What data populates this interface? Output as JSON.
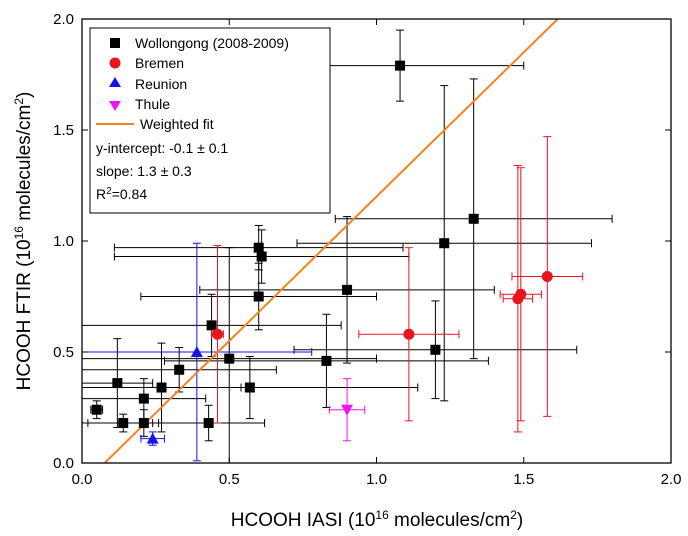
{
  "chart_data": {
    "type": "scatter",
    "xlabel": "HCOOH IASI (10^16 molecules/cm^2)",
    "ylabel": "HCOOH FTIR (10^16 molecules/cm^2)",
    "xlim": [
      0,
      2
    ],
    "ylim": [
      0,
      2
    ],
    "x_ticks": [
      "0.0",
      "0.5",
      "1.0",
      "1.5",
      "2.0"
    ],
    "y_ticks": [
      "0.0",
      "0.5",
      "1.0",
      "1.5",
      "2.0"
    ],
    "grid": false,
    "legend_position": "top-left",
    "series": [
      {
        "name": "Wollongong (2008-2009)",
        "marker": "square",
        "color": "#000000",
        "points": [
          {
            "x": 0.05,
            "y": 0.24,
            "xerr": 0.02,
            "yerr": 0.04
          },
          {
            "x": 0.12,
            "y": 0.36,
            "xerr": 0.12,
            "yerr": 0.2
          },
          {
            "x": 0.14,
            "y": 0.18,
            "xerr": 0.12,
            "yerr": 0.04
          },
          {
            "x": 0.21,
            "y": 0.29,
            "xerr": 0.21,
            "yerr": 0.09
          },
          {
            "x": 0.21,
            "y": 0.18,
            "xerr": 0.21,
            "yerr": 0.06
          },
          {
            "x": 0.27,
            "y": 0.34,
            "xerr": 0.27,
            "yerr": 0.2
          },
          {
            "x": 0.33,
            "y": 0.42,
            "xerr": 0.33,
            "yerr": 0.1
          },
          {
            "x": 0.43,
            "y": 0.18,
            "xerr": 0.19,
            "yerr": 0.08
          },
          {
            "x": 0.44,
            "y": 0.62,
            "xerr": 0.44,
            "yerr": 0.14
          },
          {
            "x": 0.5,
            "y": 0.47,
            "xerr": 0.5,
            "yerr": 0.5
          },
          {
            "x": 0.57,
            "y": 0.34,
            "xerr": 0.57,
            "yerr": 0.14
          },
          {
            "x": 0.6,
            "y": 0.97,
            "xerr": 0.49,
            "yerr": 0.1
          },
          {
            "x": 0.6,
            "y": 0.75,
            "xerr": 0.4,
            "yerr": 0.15
          },
          {
            "x": 0.61,
            "y": 0.93,
            "xerr": 0.5,
            "yerr": 0.12
          },
          {
            "x": 0.83,
            "y": 0.46,
            "xerr": 0.55,
            "yerr": 0.21
          },
          {
            "x": 0.9,
            "y": 0.78,
            "xerr": 0.5,
            "yerr": 0.33
          },
          {
            "x": 1.08,
            "y": 1.79,
            "xerr": 0.42,
            "yerr": 0.16
          },
          {
            "x": 1.2,
            "y": 0.51,
            "xerr": 0.48,
            "yerr": 0.22
          },
          {
            "x": 1.23,
            "y": 0.99,
            "xerr": 0.5,
            "yerr": 0.71
          },
          {
            "x": 1.33,
            "y": 1.1,
            "xerr": 0.47,
            "yerr": 0.63
          }
        ]
      },
      {
        "name": "Bremen",
        "marker": "circle",
        "color": "#e8141e",
        "points": [
          {
            "x": 0.46,
            "y": 0.58,
            "xerr": 0.02,
            "yerr": 0.4
          },
          {
            "x": 1.11,
            "y": 0.58,
            "xerr": 0.17,
            "yerr": 0.39
          },
          {
            "x": 1.48,
            "y": 0.74,
            "xerr": 0.05,
            "yerr": 0.6
          },
          {
            "x": 1.49,
            "y": 0.76,
            "xerr": 0.07,
            "yerr": 0.57
          },
          {
            "x": 1.58,
            "y": 0.84,
            "xerr": 0.12,
            "yerr": 0.63
          }
        ]
      },
      {
        "name": "Reunion",
        "marker": "triangle-up",
        "color": "#1414e6",
        "points": [
          {
            "x": 0.24,
            "y": 0.11,
            "xerr": 0.04,
            "yerr": 0.03
          },
          {
            "x": 0.39,
            "y": 0.5,
            "xerr": 0.39,
            "yerr": 0.49
          }
        ]
      },
      {
        "name": "Thule",
        "marker": "triangle-down",
        "color": "#f014f0",
        "points": [
          {
            "x": 0.9,
            "y": 0.24,
            "xerr": 0.06,
            "yerr": 0.14
          }
        ]
      }
    ],
    "fit": {
      "name": "Weighted fit",
      "color": "#f5821f",
      "intercept": -0.1,
      "slope": 1.3
    },
    "annotations": {
      "intercept_text": "y-intercept:  -0.1 ± 0.1",
      "slope_text": "slope: 1.3 ± 0.3",
      "r2_label": "R",
      "r2_sup": "2",
      "r2_value": "=0.84"
    }
  },
  "axes_text": {
    "x_title_main": "HCOOH IASI (10",
    "x_title_sup1": "16",
    "x_title_mid": " molecules/cm",
    "x_title_sup2": "2",
    "x_title_end": ")",
    "y_title_main": "HCOOH FTIR (10",
    "y_title_sup1": "16",
    "y_title_mid": " molecules/cm",
    "y_title_sup2": "2",
    "y_title_end": ")"
  }
}
